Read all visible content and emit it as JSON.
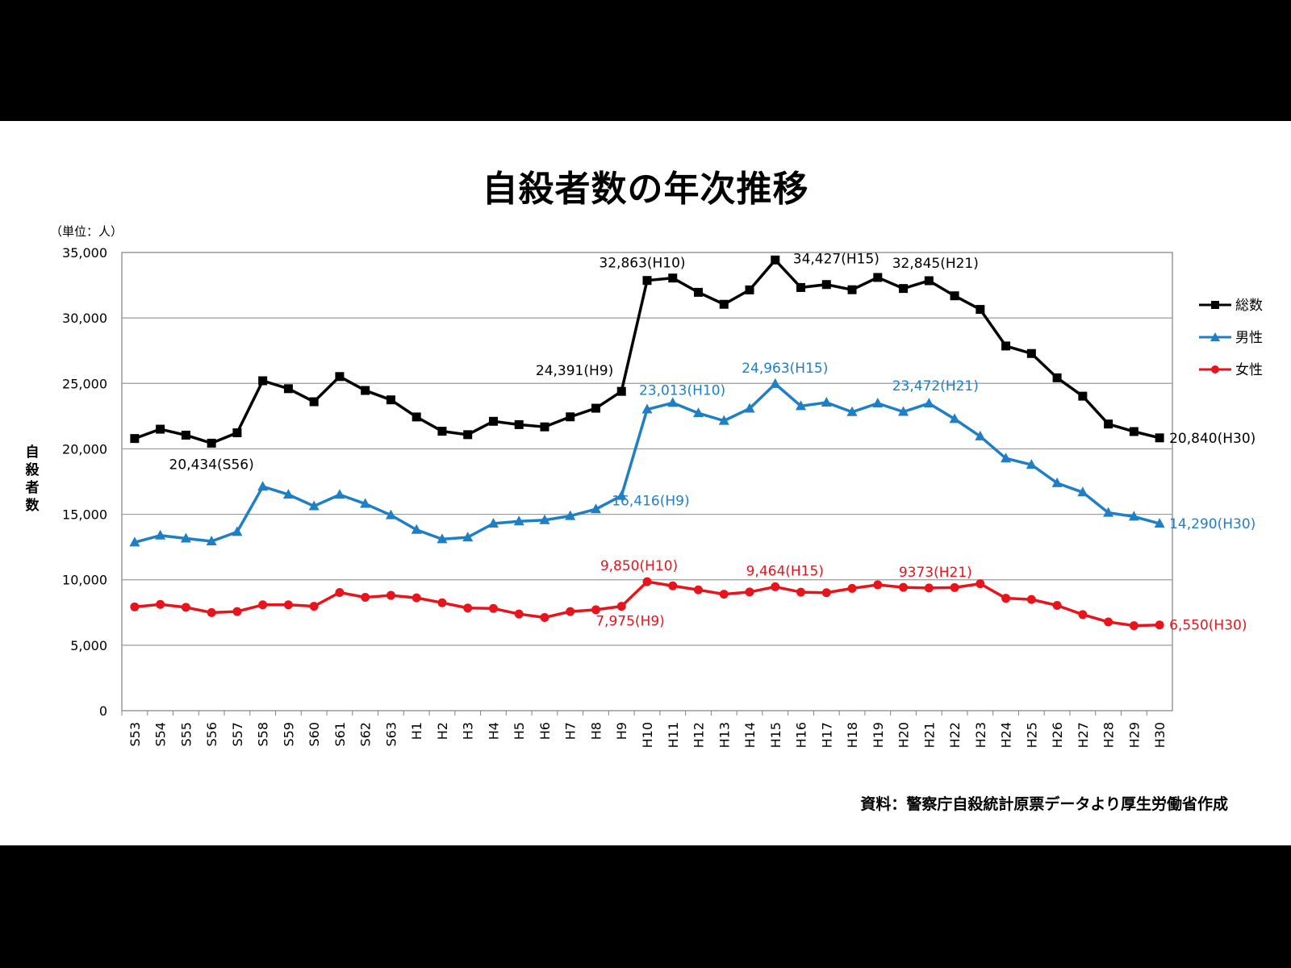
{
  "chart_data": {
    "type": "line",
    "title": "自殺者数の年次推移",
    "unit_label": "（単位：人）",
    "ylabel": "自殺者数",
    "source": "資料：警察庁自殺統計原票データより厚生労働省作成",
    "ylim": [
      0,
      35000
    ],
    "yticks": [
      "0",
      "5,000",
      "10,000",
      "15,000",
      "20,000",
      "25,000",
      "30,000",
      "35,000"
    ],
    "grid": true,
    "legend_position": "right",
    "categories": [
      "S53",
      "S54",
      "S55",
      "S56",
      "S57",
      "S58",
      "S59",
      "S60",
      "S61",
      "S62",
      "S63",
      "H1",
      "H2",
      "H3",
      "H4",
      "H5",
      "H6",
      "H7",
      "H8",
      "H9",
      "H10",
      "H11",
      "H12",
      "H13",
      "H14",
      "H15",
      "H16",
      "H17",
      "H18",
      "H19",
      "H20",
      "H21",
      "H22",
      "H23",
      "H24",
      "H25",
      "H26",
      "H27",
      "H28",
      "H29",
      "H30"
    ],
    "series": [
      {
        "name": "総数",
        "color": "#000000",
        "marker": "square",
        "values": [
          20788,
          21503,
          21048,
          20434,
          21228,
          25202,
          24596,
          23599,
          25524,
          24460,
          23742,
          22436,
          21346,
          21084,
          22104,
          21851,
          21679,
          22445,
          23104,
          24391,
          32863,
          33048,
          31957,
          31042,
          32143,
          34427,
          32325,
          32552,
          32155,
          33093,
          32249,
          32845,
          31690,
          30651,
          27858,
          27283,
          25427,
          24025,
          21897,
          21321,
          20840
        ],
        "annotations": [
          {
            "index": 3,
            "text": "20,434(S56)"
          },
          {
            "index": 19,
            "text": "24,391(H9)"
          },
          {
            "index": 20,
            "text": "32,863(H10)"
          },
          {
            "index": 25,
            "text": "34,427(H15)"
          },
          {
            "index": 31,
            "text": "32,845(H21)"
          },
          {
            "index": 40,
            "text": "20,840(H30)"
          }
        ]
      },
      {
        "name": "男性",
        "color": "#1F7FC4",
        "marker": "triangle",
        "values": [
          12859,
          13386,
          13155,
          12942,
          13654,
          17116,
          16508,
          15624,
          16497,
          15802,
          14934,
          13818,
          13102,
          13242,
          14296,
          14468,
          14560,
          14874,
          15393,
          16416,
          23013,
          23512,
          22727,
          22144,
          23080,
          24963,
          23272,
          23540,
          22813,
          23478,
          22831,
          23472,
          22283,
          20955,
          19273,
          18787,
          17386,
          16681,
          15121,
          14826,
          14290
        ],
        "annotations": [
          {
            "index": 19,
            "text": "16,416(H9)"
          },
          {
            "index": 20,
            "text": "23,013(H10)"
          },
          {
            "index": 25,
            "text": "24,963(H15)"
          },
          {
            "index": 31,
            "text": "23,472(H21)"
          },
          {
            "index": 40,
            "text": "14,290(H30)"
          }
        ]
      },
      {
        "name": "女性",
        "color": "#E8141C",
        "marker": "circle",
        "values": [
          7929,
          8117,
          7893,
          7492,
          7574,
          8086,
          8088,
          7975,
          9027,
          8658,
          8808,
          8618,
          8244,
          7842,
          7808,
          7383,
          7119,
          7571,
          7711,
          7975,
          9850,
          9536,
          9230,
          8898,
          9063,
          9464,
          9053,
          9012,
          9342,
          9615,
          9418,
          9373,
          9407,
          9696,
          8585,
          8496,
          8041,
          7344,
          6776,
          6495,
          6550
        ],
        "annotations": [
          {
            "index": 19,
            "text": "7,975(H9)"
          },
          {
            "index": 20,
            "text": "9,850(H10)"
          },
          {
            "index": 25,
            "text": "9,464(H15)"
          },
          {
            "index": 31,
            "text": "9373(H21)"
          },
          {
            "index": 40,
            "text": "6,550(H30)"
          }
        ]
      }
    ]
  }
}
